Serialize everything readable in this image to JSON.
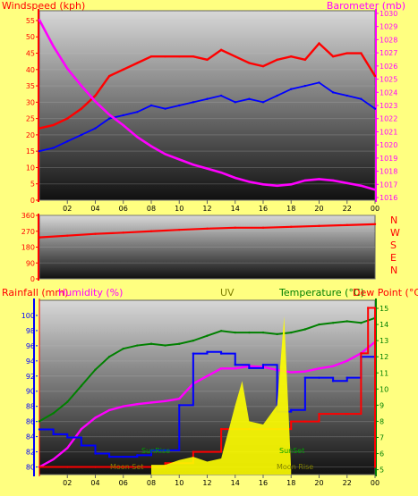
{
  "header": {
    "windspeed": "Windspeed (kph)",
    "title": "",
    "barometer": "Barometer (mb)"
  },
  "wind_dir_letters": [
    "N",
    "W",
    "S",
    "E",
    "N"
  ],
  "bottom_labels": {
    "rainfall": "Rainfall (mm)",
    "humidity": "Humidity (%)",
    "uv": "UV",
    "temperature": "Temperature (°C)",
    "dewpoint": "Dew Point (°C)"
  },
  "annotations": {
    "sun_set": "SunSet",
    "sun_rise": "SunRise",
    "moon_set": "Moon Set",
    "moon_rise": "Moon Rise"
  },
  "colors": {
    "page_bg": "#ffff80",
    "wind_gust": "#ff0000",
    "wind_avg": "#0000ff",
    "barometer": "#ff00ff",
    "wind_dir": "#ff0000",
    "rainfall": "#ff0000",
    "humidity": "#ff00ff",
    "uv": "#ffff00",
    "temperature": "#008000",
    "dewpoint": "#0000ff",
    "text_red": "#ff0000",
    "text_green": "#008000",
    "text_magenta": "#ff00ff"
  },
  "chart_data": [
    {
      "type": "line",
      "name": "wind-barometer",
      "x_ticks": [
        "02",
        "04",
        "06",
        "08",
        "10",
        "12",
        "14",
        "16",
        "18",
        "20",
        "22",
        "00"
      ],
      "xlim": [
        0,
        24
      ],
      "ylim": [
        0,
        58
      ],
      "y_ticks": [
        0,
        5,
        10,
        15,
        20,
        25,
        30,
        35,
        40,
        45,
        50,
        55
      ],
      "y2lim": [
        1015.8,
        1030.2
      ],
      "y2_ticks": [
        1016,
        1017,
        1018,
        1019,
        1020,
        1021,
        1022,
        1023,
        1024,
        1025,
        1026,
        1027,
        1028,
        1029,
        1030
      ],
      "series": [
        {
          "key": "gust",
          "axis": "y",
          "x": [
            0,
            1,
            2,
            3,
            4,
            5,
            6,
            7,
            8,
            9,
            10,
            11,
            12,
            13,
            14,
            15,
            16,
            17,
            18,
            19,
            20,
            21,
            22,
            23,
            24
          ],
          "values": [
            22,
            23,
            25,
            28,
            32,
            38,
            40,
            42,
            44,
            44,
            44,
            44,
            43,
            46,
            44,
            42,
            41,
            43,
            44,
            43,
            48,
            44,
            45,
            45,
            38
          ]
        },
        {
          "key": "avg",
          "axis": "y",
          "x": [
            0,
            1,
            2,
            3,
            4,
            5,
            6,
            7,
            8,
            9,
            10,
            11,
            12,
            13,
            14,
            15,
            16,
            17,
            18,
            19,
            20,
            21,
            22,
            23,
            24
          ],
          "values": [
            15,
            16,
            18,
            20,
            22,
            25,
            26,
            27,
            29,
            28,
            29,
            30,
            31,
            32,
            30,
            31,
            30,
            32,
            34,
            35,
            36,
            33,
            32,
            31,
            28
          ]
        },
        {
          "key": "barometer",
          "axis": "y2",
          "x": [
            0,
            1,
            2,
            3,
            4,
            5,
            6,
            7,
            8,
            9,
            10,
            11,
            12,
            13,
            14,
            15,
            16,
            17,
            18,
            19,
            20,
            21,
            22,
            23,
            24
          ],
          "values": [
            1029.5,
            1027.5,
            1025.8,
            1024.5,
            1023.3,
            1022.3,
            1021.5,
            1020.6,
            1019.9,
            1019.3,
            1018.9,
            1018.5,
            1018.2,
            1017.9,
            1017.5,
            1017.2,
            1017.0,
            1016.9,
            1017.0,
            1017.3,
            1017.4,
            1017.3,
            1017.1,
            1016.9,
            1016.6
          ]
        }
      ]
    },
    {
      "type": "line",
      "name": "wind-direction",
      "xlim": [
        0,
        24
      ],
      "ylim": [
        0,
        360
      ],
      "y_ticks": [
        0,
        90,
        180,
        270,
        360
      ],
      "x": [
        0,
        2,
        4,
        6,
        8,
        10,
        12,
        14,
        16,
        18,
        20,
        22,
        24
      ],
      "values": [
        235,
        245,
        255,
        262,
        270,
        278,
        285,
        290,
        290,
        295,
        300,
        305,
        310
      ]
    },
    {
      "type": "line",
      "name": "rain-humidity-uv-temp",
      "x_ticks": [
        "02",
        "04",
        "06",
        "08",
        "10",
        "12",
        "14",
        "16",
        "18",
        "20",
        "22",
        "00"
      ],
      "xlim": [
        0,
        24
      ],
      "ylim": [
        79,
        102
      ],
      "y_ticks": [
        80,
        82,
        84,
        86,
        88,
        90,
        92,
        94,
        96,
        98,
        100
      ],
      "y2lim": [
        4.7,
        15.5
      ],
      "y2_ticks": [
        5,
        6,
        7,
        8,
        9,
        10,
        11,
        12,
        13,
        14,
        15
      ],
      "series": [
        {
          "key": "humidity",
          "axis": "y",
          "x": [
            0,
            1,
            2,
            3,
            4,
            5,
            6,
            7,
            8,
            9,
            10,
            11,
            12,
            13,
            14,
            15,
            16,
            17,
            18,
            19,
            20,
            21,
            22,
            23,
            24
          ],
          "values": [
            80,
            81,
            82.5,
            85,
            86.5,
            87.5,
            88,
            88.3,
            88.5,
            88.7,
            89,
            91,
            92,
            93,
            93,
            93.3,
            93.2,
            92.8,
            92.5,
            92.6,
            93,
            93.3,
            94,
            95,
            96.5
          ]
        },
        {
          "key": "temperature",
          "axis": "y2",
          "x": [
            0,
            1,
            2,
            3,
            4,
            5,
            6,
            7,
            8,
            9,
            10,
            11,
            12,
            13,
            14,
            15,
            16,
            17,
            18,
            19,
            20,
            21,
            22,
            23,
            24
          ],
          "values": [
            8,
            8.5,
            9.2,
            10.2,
            11.2,
            12,
            12.5,
            12.7,
            12.8,
            12.7,
            12.8,
            13.0,
            13.3,
            13.6,
            13.5,
            13.5,
            13.5,
            13.4,
            13.5,
            13.7,
            14,
            14.1,
            14.2,
            14.1,
            14.4
          ]
        },
        {
          "key": "dewpoint",
          "axis": "y2",
          "x": [
            0,
            1,
            2,
            3,
            4,
            5,
            6,
            7,
            8,
            9,
            10,
            11,
            12,
            13,
            14,
            15,
            16,
            17,
            18,
            19,
            20,
            21,
            22,
            23,
            24
          ],
          "values": [
            7.5,
            7.2,
            7.0,
            6.5,
            6.0,
            5.8,
            5.8,
            5.9,
            6.2,
            6.2,
            9.0,
            12.2,
            12.3,
            12.2,
            11.5,
            11.3,
            11.5,
            8.6,
            8.7,
            10.7,
            10.7,
            10.5,
            10.7,
            12.0,
            14.5
          ]
        },
        {
          "key": "rainfall",
          "axis": "y",
          "x": [
            0,
            2,
            4,
            6,
            8,
            8.5,
            9,
            11,
            13,
            15,
            17,
            18,
            19,
            20,
            22,
            23,
            23.5,
            24
          ],
          "values": [
            80,
            80,
            80,
            80,
            80,
            80,
            80.5,
            82,
            85,
            85,
            85,
            86,
            86,
            87,
            87,
            95,
            101,
            80
          ]
        },
        {
          "key": "uv",
          "axis": "y2",
          "x": [
            8,
            9,
            10,
            11,
            12,
            13,
            14,
            14.5,
            15,
            16,
            17,
            17.5,
            18
          ],
          "values": [
            5.3,
            5.3,
            5.6,
            5.8,
            5.5,
            5.7,
            9,
            10.5,
            8,
            7.8,
            9,
            14.5,
            5
          ]
        }
      ]
    }
  ]
}
